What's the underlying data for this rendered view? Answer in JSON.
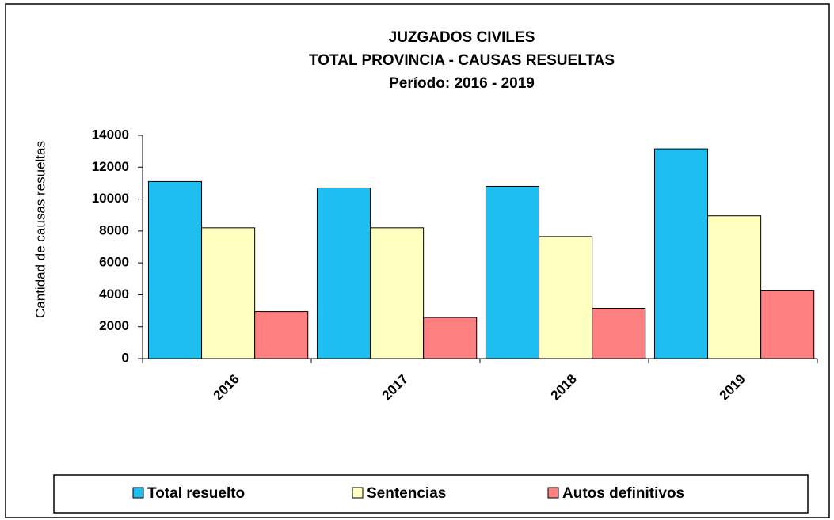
{
  "chart_data": {
    "type": "bar",
    "title": [
      "JUZGADOS  CIVILES",
      "TOTAL PROVINCIA - CAUSAS RESUELTAS",
      "Período: 2016 - 2019"
    ],
    "y_label": "Cantidad de causas resueltas",
    "categories": [
      "2016",
      "2017",
      "2018",
      "2019"
    ],
    "series": [
      {
        "name": "Total resuelto",
        "color": "#1ebff0",
        "values": [
          11100,
          10700,
          10800,
          13150
        ]
      },
      {
        "name": "Sentencias",
        "color": "#ffffc0",
        "values": [
          8200,
          8200,
          7650,
          8950
        ]
      },
      {
        "name": "Autos definitivos",
        "color": "#ff8080",
        "values": [
          2950,
          2580,
          3150,
          4250
        ]
      }
    ],
    "ylim": [
      0,
      14000
    ],
    "yticks": [
      0,
      2000,
      4000,
      6000,
      8000,
      10000,
      12000,
      14000
    ],
    "legend": "bottom"
  }
}
